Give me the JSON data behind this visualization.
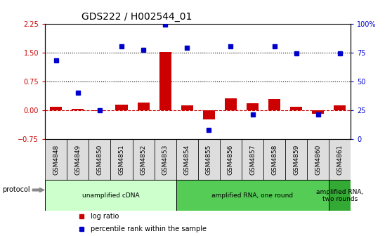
{
  "title": "GDS222 / H002544_01",
  "samples": [
    "GSM4848",
    "GSM4849",
    "GSM4850",
    "GSM4851",
    "GSM4852",
    "GSM4853",
    "GSM4854",
    "GSM4855",
    "GSM4856",
    "GSM4857",
    "GSM4858",
    "GSM4859",
    "GSM4860",
    "GSM4861"
  ],
  "log_ratio": [
    0.08,
    0.03,
    -0.02,
    0.15,
    0.2,
    1.52,
    0.13,
    -0.25,
    0.3,
    0.17,
    0.28,
    0.08,
    -0.1,
    0.12
  ],
  "percentile": [
    68,
    40,
    25,
    80,
    77,
    99,
    79,
    8,
    80,
    21,
    80,
    74,
    21,
    74
  ],
  "log_ratio_color": "#cc0000",
  "percentile_color": "#0000cc",
  "ylim_left": [
    -0.75,
    2.25
  ],
  "ylim_right": [
    0,
    100
  ],
  "yticks_left": [
    -0.75,
    0,
    0.75,
    1.5,
    2.25
  ],
  "yticks_right": [
    0,
    25,
    50,
    75,
    100
  ],
  "hlines": [
    0.75,
    1.5
  ],
  "protocols": [
    {
      "label": "unamplified cDNA",
      "start": 0,
      "end": 5,
      "color": "#ccffcc"
    },
    {
      "label": "amplified RNA, one round",
      "start": 6,
      "end": 12,
      "color": "#55cc55"
    },
    {
      "label": "amplified RNA,\ntwo rounds",
      "start": 13,
      "end": 13,
      "color": "#33aa33"
    }
  ],
  "protocol_label": "protocol",
  "legend_log": "log ratio",
  "legend_pct": "percentile rank within the sample",
  "bar_width": 0.55,
  "tick_label_fontsize": 6.5,
  "title_fontsize": 10
}
